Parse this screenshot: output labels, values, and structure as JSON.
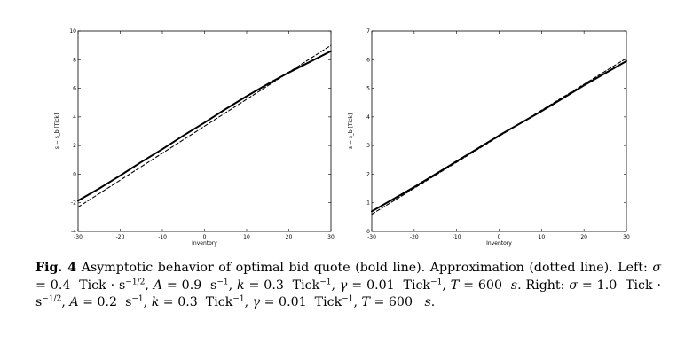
{
  "chart_data": [
    {
      "type": "line",
      "title": "",
      "xlabel": "Inventory",
      "ylabel": "s − s_b [Tick]",
      "xlim": [
        -30,
        30
      ],
      "ylim": [
        -4,
        10
      ],
      "xticks": [
        -30,
        -20,
        -10,
        0,
        10,
        20,
        30
      ],
      "yticks": [
        -4,
        -2,
        0,
        2,
        4,
        6,
        8,
        10
      ],
      "series": [
        {
          "style": "solid-bold",
          "x": [
            -30,
            -25,
            -20,
            -15,
            -10,
            -5,
            0,
            5,
            10,
            15,
            20,
            25,
            30
          ],
          "y": [
            -1.85,
            -1.0,
            -0.1,
            0.85,
            1.75,
            2.7,
            3.6,
            4.55,
            5.45,
            6.3,
            7.1,
            7.85,
            8.6
          ]
        },
        {
          "style": "dashed",
          "x": [
            -30,
            30
          ],
          "y": [
            -2.3,
            9.0
          ]
        }
      ]
    },
    {
      "type": "line",
      "title": "",
      "xlabel": "Inventory",
      "ylabel": "s − s_b [Tick]",
      "xlim": [
        -30,
        30
      ],
      "ylim": [
        0,
        7
      ],
      "xticks": [
        -30,
        -20,
        -10,
        0,
        10,
        20,
        30
      ],
      "yticks": [
        0,
        1,
        2,
        3,
        4,
        5,
        6,
        7
      ],
      "series": [
        {
          "style": "solid-bold",
          "x": [
            -30,
            -20,
            -10,
            0,
            10,
            20,
            30
          ],
          "y": [
            0.7,
            1.55,
            2.45,
            3.35,
            4.2,
            5.1,
            5.95
          ]
        },
        {
          "style": "dashed",
          "x": [
            -30,
            30
          ],
          "y": [
            0.6,
            6.05
          ]
        }
      ]
    }
  ],
  "caption": {
    "fig_label": "Fig. 4",
    "text": "Asymptotic behavior of optimal bid quote (bold line). Approximation (dotted line). Left: σ = 0.4  Tick · s−1/2, A = 0.9  s−1, k = 0.3  Tick−1, γ = 0.01  Tick−1, T = 600  s. Right: σ = 1.0  Tick · s−1/2, A = 0.2  s−1, k = 0.3  Tick−1, γ = 0.01  Tick−1, T = 600  s."
  },
  "line_color": "#000000"
}
